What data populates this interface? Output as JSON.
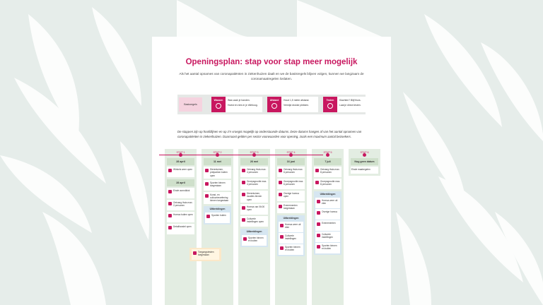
{
  "title": "Openingsplan: stap voor stap meer mogelijk",
  "subtitle": "Als het aantal opnames van coronapatiënten in ziekenhuizen daalt en we de basisregels blijven volgen, kunnen we langzaam de coronamaatregelen loslaten.",
  "basic_rules": {
    "label": "Basisregels",
    "items": [
      {
        "head": "Wassen",
        "lines": [
          "Was vaak je handen.",
          "Hoest en nies in je elleboog."
        ]
      },
      {
        "head": "Afstand",
        "lines": [
          "Houd 1,5 meter afstand.",
          "Vermijd drukke plekken."
        ]
      },
      {
        "head": "Testen",
        "lines": [
          "Klachten? Blijf thuis.",
          "Laat je direct testen."
        ]
      }
    ]
  },
  "intro": "De stappen zijn op hoofdlijnen en op z'n vroegst mogelijk op onderstaande datums. Deze datums hangen af van het aantal opnames van coronapatiënten in ziekenhuizen. Daarnaast gelden per sector voorwaarden voor opening, zoals een maximum aantal bezoekers.",
  "stages": [
    {
      "label": "STAP 1",
      "date": "28 april",
      "items": [
        "Winkels weer open"
      ],
      "date2": "28 april",
      "items2": [
        "Einde avondklok",
        "Ontvang thuis max. 2 personen",
        "Horeca buiten open",
        "Detailhandel open"
      ]
    },
    {
      "label": "STAP 2",
      "date": "11 mei",
      "items": [
        "Dierentuinen, pretparken buiten open",
        "Sporten binnen toegestaan",
        "Kunst- en cultuurbeoefening binnen toegestaan"
      ],
      "section": "Uitbreidingen",
      "section_items": [
        "Sporten buiten"
      ],
      "extra_items": [
        "Toegangstesten toegestaan"
      ]
    },
    {
      "label": "STAP 3",
      "date": "26 mei",
      "items": [
        "Ontvang thuis max. 4 personen",
        "Groepsgrootte max. 4 personen",
        "Dierentuinen, locaties binnen open",
        "Horeca van 06:00 open"
      ],
      "section2_items": [
        "Culturele instellingen open"
      ],
      "section": "Uitbreidingen",
      "section_items": [
        "Sporten binnen en buiten"
      ]
    },
    {
      "label": "STAP 4",
      "date": "16 juni",
      "items": [
        "Ontvang thuis max. 6 personen",
        "Groepsgrootte max. 6 personen",
        "Overige horeca open",
        "Evenementen toegestaan"
      ],
      "section": "Uitbreidingen",
      "section_items": [
        "Horeca weer uit eten",
        "Culturele instellingen",
        "Sporten binnen en buiten"
      ]
    },
    {
      "label": "STAP 5",
      "date": "7 juli",
      "items": [
        "Ontvang thuis max. 8 personen",
        "Groepsgrootte max. 8 personen"
      ],
      "section": "Uitbreidingen",
      "section_items": [
        "Horeca weer uit eten",
        "Overige horeca",
        "Evenementen",
        "Culturele instellingen",
        "Sporten binnen en buiten"
      ]
    },
    {
      "label": "STAP 6",
      "date": "Nog geen datum",
      "items": [
        "Einde maatregelen"
      ]
    }
  ]
}
